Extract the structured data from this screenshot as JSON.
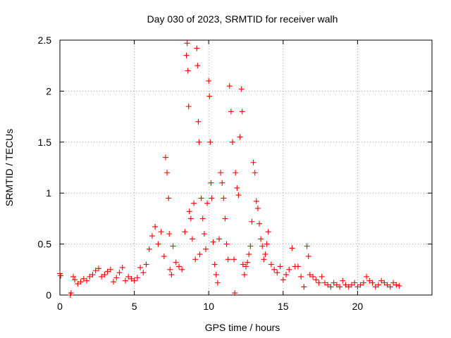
{
  "chart_data": {
    "type": "scatter",
    "title": "Day 030 of 2023, SRMTID for receiver walh",
    "xlabel": "GPS time / hours",
    "ylabel": "SRMTID / TECUs",
    "xlim": [
      0,
      25
    ],
    "ylim": [
      0,
      2.5
    ],
    "xticks": [
      0,
      5,
      10,
      15,
      20
    ],
    "xtick_labels": [
      "0",
      "5",
      "10",
      "15",
      "20"
    ],
    "yticks": [
      0,
      0.5,
      1,
      1.5,
      2,
      2.5
    ],
    "ytick_labels": [
      "0",
      "0.5",
      "1",
      "1.5",
      "2",
      "2.5"
    ],
    "grid": true,
    "marker": "+",
    "marker_color": "#ff0000",
    "series": [
      {
        "name": "SRMTID",
        "x": [
          0.0,
          0.05,
          0.7,
          0.75,
          0.9,
          1.0,
          1.2,
          1.4,
          1.6,
          1.8,
          2.0,
          2.2,
          2.4,
          2.6,
          2.8,
          3.0,
          3.2,
          3.4,
          3.6,
          3.8,
          4.0,
          4.2,
          4.4,
          4.6,
          4.8,
          5.0,
          5.2,
          5.4,
          5.6,
          5.8,
          6.0,
          6.2,
          6.4,
          6.6,
          6.8,
          7.0,
          7.1,
          7.2,
          7.3,
          7.35,
          7.4,
          7.5,
          7.6,
          7.8,
          8.0,
          8.2,
          8.4,
          8.5,
          8.55,
          8.6,
          8.65,
          8.7,
          8.8,
          8.9,
          9.0,
          9.1,
          9.2,
          9.25,
          9.3,
          9.35,
          9.4,
          9.5,
          9.6,
          9.7,
          9.8,
          9.9,
          10.0,
          10.05,
          10.1,
          10.15,
          10.2,
          10.3,
          10.4,
          10.5,
          10.6,
          10.7,
          10.8,
          10.9,
          11.0,
          11.1,
          11.2,
          11.3,
          11.4,
          11.5,
          11.6,
          11.7,
          11.75,
          11.8,
          11.9,
          12.0,
          12.1,
          12.2,
          12.25,
          12.3,
          12.4,
          12.5,
          12.6,
          12.7,
          12.8,
          12.9,
          13.0,
          13.1,
          13.2,
          13.3,
          13.4,
          13.5,
          13.6,
          13.7,
          13.8,
          13.9,
          14.0,
          14.2,
          14.4,
          14.6,
          14.8,
          15.0,
          15.2,
          15.4,
          15.6,
          15.8,
          16.0,
          16.2,
          16.4,
          16.6,
          16.7,
          16.8,
          17.0,
          17.2,
          17.4,
          17.6,
          17.8,
          18.0,
          18.2,
          18.4,
          18.6,
          18.8,
          19.0,
          19.2,
          19.4,
          19.6,
          19.8,
          20.0,
          20.2,
          20.4,
          20.6,
          20.8,
          21.0,
          21.2,
          21.4,
          21.6,
          21.8,
          22.0,
          22.2,
          22.4,
          22.6,
          22.8
        ],
        "y": [
          0.21,
          0.19,
          0.0,
          0.02,
          0.18,
          0.15,
          0.11,
          0.13,
          0.16,
          0.14,
          0.18,
          0.2,
          0.24,
          0.26,
          0.18,
          0.2,
          0.23,
          0.25,
          0.13,
          0.17,
          0.22,
          0.27,
          0.14,
          0.18,
          0.16,
          0.14,
          0.17,
          0.27,
          0.22,
          0.3,
          0.45,
          0.58,
          0.67,
          0.5,
          0.62,
          0.38,
          1.35,
          1.2,
          0.95,
          0.6,
          0.25,
          0.2,
          0.48,
          0.32,
          0.28,
          0.25,
          0.62,
          2.35,
          2.47,
          2.2,
          1.85,
          0.82,
          0.75,
          0.55,
          0.9,
          0.35,
          2.42,
          2.25,
          1.7,
          1.5,
          0.4,
          0.95,
          0.75,
          0.6,
          0.45,
          0.9,
          2.1,
          1.95,
          1.5,
          1.1,
          0.95,
          0.52,
          0.3,
          0.2,
          0.12,
          0.55,
          1.2,
          1.1,
          0.95,
          0.75,
          0.5,
          0.35,
          2.05,
          1.8,
          1.5,
          0.35,
          0.02,
          1.2,
          1.05,
          0.98,
          1.55,
          2.02,
          1.8,
          0.3,
          0.2,
          0.28,
          0.32,
          0.4,
          0.48,
          0.72,
          1.3,
          1.2,
          0.92,
          0.85,
          0.7,
          0.55,
          0.48,
          0.35,
          0.4,
          0.5,
          0.62,
          0.3,
          0.25,
          0.22,
          0.28,
          0.15,
          0.2,
          0.25,
          0.46,
          0.28,
          0.28,
          0.18,
          0.08,
          0.48,
          0.38,
          0.2,
          0.18,
          0.15,
          0.12,
          0.18,
          0.12,
          0.1,
          0.08,
          0.12,
          0.1,
          0.08,
          0.14,
          0.1,
          0.08,
          0.1,
          0.12,
          0.08,
          0.1,
          0.12,
          0.18,
          0.14,
          0.12,
          0.08,
          0.1,
          0.14,
          0.12,
          0.1,
          0.08,
          0.12,
          0.1,
          0.09
        ]
      }
    ]
  }
}
